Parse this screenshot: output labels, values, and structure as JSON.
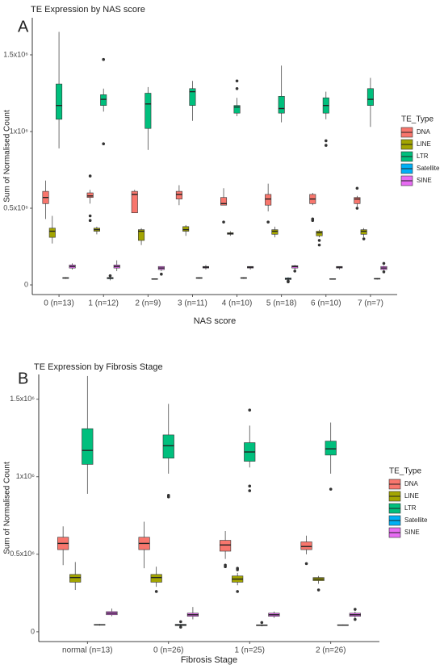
{
  "chart_data": [
    {
      "type": "box",
      "panel_label": "A",
      "title": "TE Expression by NAS score",
      "x_label": "NAS score",
      "y_label": "Sum of Normalised Count",
      "categories": [
        "0 (n=13)",
        "1 (n=12)",
        "2 (n=9)",
        "3 (n=11)",
        "4 (n=10)",
        "5 (n=18)",
        "6 (n=10)",
        "7 (n=7)"
      ],
      "ylim": [
        -63000,
        1742000
      ],
      "yticks": [
        0,
        {
          "value": 500000,
          "label": "0.5x10⁶"
        },
        {
          "value": 1000000,
          "label": "1x10⁶"
        },
        {
          "value": 1500000,
          "label": "1.5x10⁶"
        }
      ],
      "grid": false,
      "legend": "right",
      "legend_title": "TE_Type",
      "series": [
        {
          "name": "DNA",
          "color": "#F8766D",
          "values": [
            [
              430000,
              530000,
              570000,
              610000,
              680000
            ],
            [
              530000,
              570000,
              580000,
              600000,
              620000
            ],
            [
              470000,
              470000,
              590000,
              610000,
              620000
            ],
            [
              520000,
              560000,
              590000,
              610000,
              650000
            ],
            [
              520000,
              520000,
              530000,
              570000,
              630000
            ],
            [
              480000,
              520000,
              560000,
              590000,
              660000
            ],
            [
              520000,
              530000,
              560000,
              590000,
              600000
            ],
            [
              510000,
              530000,
              560000,
              570000,
              580000
            ]
          ],
          "outliers": [
            [],
            [
              710000,
              450000,
              420000
            ],
            [],
            [],
            [
              410000
            ],
            [
              410000
            ],
            [
              420000,
              430000
            ],
            [
              630000,
              500000
            ]
          ]
        },
        {
          "name": "LINE",
          "color": "#A3A500",
          "values": [
            [
              270000,
              310000,
              350000,
              370000,
              450000
            ],
            [
              330000,
              350000,
              360000,
              370000,
              380000
            ],
            [
              260000,
              290000,
              350000,
              360000,
              370000
            ],
            [
              320000,
              350000,
              360000,
              380000,
              390000
            ],
            [
              320000,
              330000,
              335000,
              340000,
              350000
            ],
            [
              310000,
              330000,
              350000,
              360000,
              380000
            ],
            [
              310000,
              320000,
              340000,
              350000,
              360000
            ],
            [
              310000,
              330000,
              350000,
              360000,
              370000
            ]
          ],
          "outliers": [
            [],
            [],
            [],
            [],
            [],
            [],
            [
              290000,
              260000
            ],
            [
              300000
            ]
          ]
        },
        {
          "name": "LTR",
          "color": "#00BF7D",
          "values": [
            [
              890000,
              1080000,
              1170000,
              1310000,
              1650000
            ],
            [
              1130000,
              1170000,
              1210000,
              1240000,
              1280000
            ],
            [
              880000,
              1020000,
              1180000,
              1250000,
              1290000
            ],
            [
              1070000,
              1170000,
              1260000,
              1280000,
              1330000
            ],
            [
              1100000,
              1120000,
              1160000,
              1170000,
              1220000
            ],
            [
              1060000,
              1120000,
              1150000,
              1230000,
              1430000
            ],
            [
              1080000,
              1120000,
              1170000,
              1220000,
              1260000
            ],
            [
              1030000,
              1170000,
              1210000,
              1280000,
              1350000
            ]
          ],
          "outliers": [
            [],
            [
              1470000,
              920000
            ],
            [],
            [],
            [
              1330000,
              1280000
            ],
            [],
            [
              940000,
              910000
            ],
            []
          ]
        },
        {
          "name": "Satellite",
          "color": "#00B0F6",
          "values": [
            [
              40000,
              43000,
              45000,
              47000,
              50000
            ],
            [
              30000,
              40000,
              45000,
              48000,
              50000
            ],
            [
              35000,
              37000,
              38000,
              40000,
              42000
            ],
            [
              40000,
              43000,
              45000,
              47000,
              50000
            ],
            [
              40000,
              43000,
              45000,
              47000,
              50000
            ],
            [
              30000,
              35000,
              40000,
              45000,
              50000
            ],
            [
              35000,
              37000,
              38000,
              40000,
              42000
            ],
            [
              35000,
              38000,
              40000,
              42000,
              45000
            ]
          ],
          "outliers": [
            [],
            [
              60000
            ],
            [],
            [],
            [],
            [
              20000,
              25000
            ],
            [],
            []
          ]
        },
        {
          "name": "SINE",
          "color": "#E76BF3",
          "values": [
            [
              100000,
              110000,
              120000,
              130000,
              140000
            ],
            [
              90000,
              110000,
              120000,
              130000,
              160000
            ],
            [
              90000,
              100000,
              110000,
              120000,
              120000
            ],
            [
              100000,
              110000,
              115000,
              120000,
              130000
            ],
            [
              100000,
              110000,
              115000,
              120000,
              120000
            ],
            [
              100000,
              110000,
              120000,
              125000,
              130000
            ],
            [
              100000,
              110000,
              115000,
              120000,
              120000
            ],
            [
              95000,
              100000,
              110000,
              120000,
              125000
            ]
          ],
          "outliers": [
            [],
            [],
            [
              70000
            ],
            [],
            [],
            [
              90000
            ],
            [],
            [
              140000,
              85000
            ]
          ]
        }
      ]
    },
    {
      "type": "box",
      "panel_label": "B",
      "title": "TE Expression by Fibrosis Stage",
      "x_label": "Fibrosis Stage",
      "y_label": "Sum of Normalised Count",
      "categories": [
        "normal (n=13)",
        "0 (n=26)",
        "1 (n=25)",
        "2 (n=26)"
      ],
      "ylim": [
        -63000,
        1660000
      ],
      "yticks": [
        0,
        {
          "value": 500000,
          "label": "0.5x10⁶"
        },
        {
          "value": 1000000,
          "label": "1x10⁶"
        },
        {
          "value": 1500000,
          "label": "1.5x10⁶"
        }
      ],
      "grid": false,
      "legend": "right",
      "legend_title": "TE_Type",
      "series": [
        {
          "name": "DNA",
          "color": "#F8766D",
          "values": [
            [
              430000,
              530000,
              570000,
              610000,
              680000
            ],
            [
              410000,
              530000,
              570000,
              610000,
              710000
            ],
            [
              470000,
              520000,
              560000,
              590000,
              650000
            ],
            [
              500000,
              530000,
              550000,
              580000,
              620000
            ]
          ],
          "outliers": [
            [],
            [],
            [
              430000,
              420000
            ],
            [
              440000
            ]
          ]
        },
        {
          "name": "LINE",
          "color": "#A3A500",
          "values": [
            [
              270000,
              320000,
              350000,
              370000,
              450000
            ],
            [
              290000,
              320000,
              350000,
              370000,
              420000
            ],
            [
              300000,
              320000,
              340000,
              360000,
              380000
            ],
            [
              310000,
              330000,
              340000,
              350000,
              360000
            ]
          ],
          "outliers": [
            [],
            [
              260000
            ],
            [
              410000,
              400000,
              260000
            ],
            [
              270000
            ]
          ]
        },
        {
          "name": "LTR",
          "color": "#00BF7D",
          "values": [
            [
              890000,
              1080000,
              1170000,
              1310000,
              1650000
            ],
            [
              1020000,
              1120000,
              1200000,
              1270000,
              1470000
            ],
            [
              1060000,
              1100000,
              1160000,
              1220000,
              1330000
            ],
            [
              1020000,
              1140000,
              1180000,
              1230000,
              1350000
            ]
          ],
          "outliers": [
            [],
            [
              880000,
              870000
            ],
            [
              1430000,
              940000,
              910000
            ],
            [
              920000
            ]
          ]
        },
        {
          "name": "Satellite",
          "color": "#00B0F6",
          "values": [
            [
              40000,
              43000,
              45000,
              47000,
              50000
            ],
            [
              38000,
              40000,
              45000,
              48000,
              50000
            ],
            [
              35000,
              40000,
              42000,
              45000,
              48000
            ],
            [
              40000,
              42000,
              43000,
              45000,
              47000
            ]
          ],
          "outliers": [
            [],
            [
              65000,
              30000
            ],
            [
              60000
            ],
            []
          ]
        },
        {
          "name": "SINE",
          "color": "#E76BF3",
          "values": [
            [
              100000,
              110000,
              120000,
              130000,
              150000
            ],
            [
              80000,
              100000,
              110000,
              120000,
              160000
            ],
            [
              90000,
              100000,
              110000,
              120000,
              130000
            ],
            [
              90000,
              100000,
              110000,
              120000,
              130000
            ]
          ],
          "outliers": [
            [],
            [],
            [],
            [
              145000,
              80000
            ]
          ]
        }
      ]
    }
  ]
}
